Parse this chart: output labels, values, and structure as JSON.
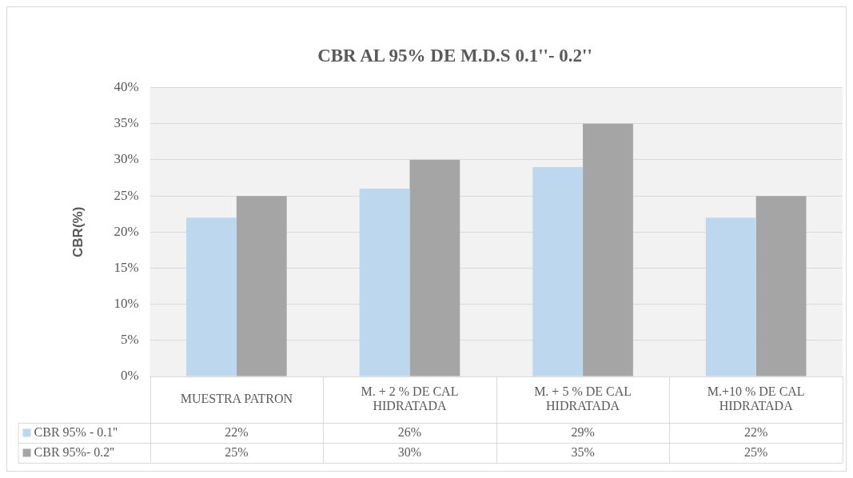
{
  "chart_data": {
    "type": "bar",
    "title": "CBR AL 95% DE M.D.S 0.1''- 0.2''",
    "ylabel": "CBR(%)",
    "categories": [
      "MUESTRA PATRON",
      "M. + 2 % DE CAL HIDRATADA",
      "M. + 5 % DE CAL HIDRATADA",
      "M.+10 % DE CAL HIDRATADA"
    ],
    "series": [
      {
        "name": "CBR 95% - 0.1''",
        "color": "#bdd7ee",
        "values": [
          22,
          26,
          29,
          22
        ],
        "value_labels": [
          "22%",
          "26%",
          "29%",
          "22%"
        ]
      },
      {
        "name": "CBR 95%- 0.2''",
        "color": "#a5a5a5",
        "values": [
          25,
          30,
          35,
          25
        ],
        "value_labels": [
          "25%",
          "30%",
          "35%",
          "25%"
        ]
      }
    ],
    "ylim": [
      0,
      40
    ],
    "yticks": [
      {
        "value": 0,
        "label": "0%"
      },
      {
        "value": 5,
        "label": "5%"
      },
      {
        "value": 10,
        "label": "10%"
      },
      {
        "value": 15,
        "label": "15%"
      },
      {
        "value": 20,
        "label": "20%"
      },
      {
        "value": 25,
        "label": "25%"
      },
      {
        "value": 30,
        "label": "30%"
      },
      {
        "value": 35,
        "label": "35%"
      },
      {
        "value": 40,
        "label": "40%"
      }
    ],
    "grid": "y",
    "legend": "bottom"
  }
}
